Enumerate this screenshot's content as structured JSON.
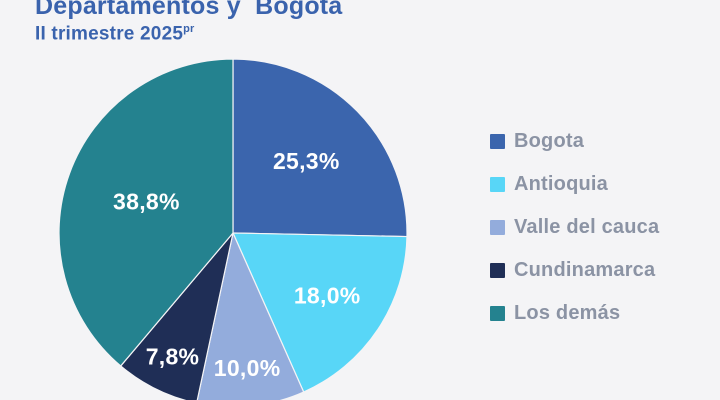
{
  "page": {
    "background_color": "#f4f4f6",
    "title": "Departamentos y  Bogotá",
    "subtitle": "II trimestre 2025",
    "subtitle_superscript": "pr",
    "title_color": "#3a63ad",
    "legend_text_color": "#8b93a4"
  },
  "chart_data": {
    "type": "pie",
    "title": "Departamentos y Bogotá",
    "subtitle": "II trimestre 2025pr",
    "legend_position": "right",
    "start_angle_deg": 0,
    "direction": "clockwise",
    "value_unit": "percent",
    "total_percent": 99.9,
    "segments": [
      {
        "label": "Bogota",
        "value": 25.3,
        "display": "25,3%",
        "color": "#3b65ad"
      },
      {
        "label": "Antioquia",
        "value": 18.0,
        "display": "18,0%",
        "color": "#58d6f7"
      },
      {
        "label": "Valle del cauca",
        "value": 10.0,
        "display": "10,0%",
        "color": "#93acdc"
      },
      {
        "label": "Cundinamarca",
        "value": 7.8,
        "display": "7,8%",
        "color": "#1f2e56"
      },
      {
        "label": "Los demás",
        "value": 38.8,
        "display": "38,8%",
        "color": "#24828f"
      }
    ]
  }
}
